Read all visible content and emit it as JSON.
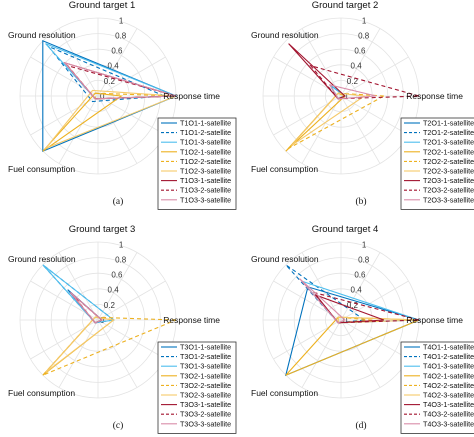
{
  "chart_data": [
    {
      "type": "radar",
      "panel": "(a)",
      "title": "Ground target 1",
      "axes": [
        "Response time",
        "Ground resolution",
        "Fuel consumption"
      ],
      "rticks": [
        "0",
        "0.2",
        "0.4",
        "0.6",
        "0.8",
        "1"
      ],
      "rlim": [
        0,
        1
      ],
      "legend_location": "bottom-right",
      "series": [
        {
          "name": "T1O1-1-satellite",
          "color": "#0072BD",
          "dash": "solid",
          "values": [
            1.0,
            1.0,
            1.0
          ]
        },
        {
          "name": "T1O1-2-satellite",
          "color": "#0072BD",
          "dash": "dashed",
          "values": [
            0.85,
            0.9,
            0.1
          ]
        },
        {
          "name": "T1O1-3-satellite",
          "color": "#4DBEEE",
          "dash": "solid",
          "values": [
            1.0,
            0.95,
            0.05
          ]
        },
        {
          "name": "T1O2-1-satellite",
          "color": "#EDB120",
          "dash": "solid",
          "values": [
            0.3,
            0.05,
            1.0
          ]
        },
        {
          "name": "T1O2-2-satellite",
          "color": "#EDB120",
          "dash": "dashed",
          "values": [
            1.0,
            0.05,
            0.05
          ]
        },
        {
          "name": "T1O2-3-satellite",
          "color": "#F5C96A",
          "dash": "solid",
          "values": [
            1.0,
            0.1,
            0.95
          ]
        },
        {
          "name": "T1O3-1-satellite",
          "color": "#A2142F",
          "dash": "solid",
          "values": [
            1.0,
            0.6,
            0.05
          ]
        },
        {
          "name": "T1O3-2-satellite",
          "color": "#A2142F",
          "dash": "dashed",
          "values": [
            1.0,
            0.55,
            0.05
          ]
        },
        {
          "name": "T1O3-3-satellite",
          "color": "#D98CA8",
          "dash": "solid",
          "values": [
            1.0,
            0.6,
            0.05
          ]
        }
      ]
    },
    {
      "type": "radar",
      "panel": "(b)",
      "title": "Ground target 2",
      "axes": [
        "Response time",
        "Ground resolution",
        "Fuel consumption"
      ],
      "rticks": [
        "0",
        "0.2",
        "0.4",
        "0.6",
        "0.8",
        "1"
      ],
      "rlim": [
        0,
        1
      ],
      "legend_location": "bottom-right",
      "series": [
        {
          "name": "T2O1-1-satellite",
          "color": "#0072BD",
          "dash": "solid",
          "values": [
            0.05,
            0.2,
            0.05
          ]
        },
        {
          "name": "T2O1-2-satellite",
          "color": "#0072BD",
          "dash": "dashed",
          "values": [
            0.05,
            0.2,
            0.05
          ]
        },
        {
          "name": "T2O1-3-satellite",
          "color": "#4DBEEE",
          "dash": "solid",
          "values": [
            0.05,
            0.2,
            0.05
          ]
        },
        {
          "name": "T2O2-1-satellite",
          "color": "#EDB120",
          "dash": "solid",
          "values": [
            0.05,
            0.05,
            1.0
          ]
        },
        {
          "name": "T2O2-2-satellite",
          "color": "#EDB120",
          "dash": "dashed",
          "values": [
            0.55,
            0.05,
            0.95
          ]
        },
        {
          "name": "T2O2-3-satellite",
          "color": "#F5C96A",
          "dash": "solid",
          "values": [
            0.3,
            0.05,
            0.9
          ]
        },
        {
          "name": "T2O3-1-satellite",
          "color": "#A2142F",
          "dash": "solid",
          "values": [
            0.05,
            0.95,
            0.05
          ]
        },
        {
          "name": "T2O3-2-satellite",
          "color": "#A2142F",
          "dash": "dashed",
          "values": [
            1.0,
            0.55,
            0.05
          ]
        },
        {
          "name": "T2O3-3-satellite",
          "color": "#D98CA8",
          "dash": "solid",
          "values": [
            0.45,
            0.2,
            0.05
          ]
        }
      ]
    },
    {
      "type": "radar",
      "panel": "(c)",
      "title": "Ground target 3",
      "axes": [
        "Response time",
        "Ground resolution",
        "Fuel consumption"
      ],
      "rticks": [
        "0",
        "0.2",
        "0.4",
        "0.6",
        "0.8",
        "1"
      ],
      "rlim": [
        0,
        1
      ],
      "legend_location": "bottom-right",
      "series": [
        {
          "name": "T3O1-1-satellite",
          "color": "#0072BD",
          "dash": "solid",
          "values": [
            0.05,
            0.55,
            0.05
          ]
        },
        {
          "name": "T3O1-2-satellite",
          "color": "#0072BD",
          "dash": "dashed",
          "values": [
            0.2,
            1.0,
            0.05
          ]
        },
        {
          "name": "T3O1-3-satellite",
          "color": "#4DBEEE",
          "dash": "solid",
          "values": [
            0.2,
            1.0,
            0.05
          ]
        },
        {
          "name": "T3O2-1-satellite",
          "color": "#EDB120",
          "dash": "solid",
          "values": [
            0.2,
            0.05,
            1.0
          ]
        },
        {
          "name": "T3O2-2-satellite",
          "color": "#EDB120",
          "dash": "dashed",
          "values": [
            1.0,
            0.05,
            1.0
          ]
        },
        {
          "name": "T3O2-3-satellite",
          "color": "#F5C96A",
          "dash": "solid",
          "values": [
            0.2,
            0.05,
            0.95
          ]
        },
        {
          "name": "T3O3-1-satellite",
          "color": "#A2142F",
          "dash": "solid",
          "values": [
            0.05,
            0.5,
            0.05
          ]
        },
        {
          "name": "T3O3-2-satellite",
          "color": "#A2142F",
          "dash": "dashed",
          "values": [
            0.05,
            0.45,
            0.05
          ]
        },
        {
          "name": "T3O3-3-satellite",
          "color": "#D98CA8",
          "dash": "solid",
          "values": [
            0.05,
            0.5,
            0.05
          ]
        }
      ]
    },
    {
      "type": "radar",
      "panel": "(d)",
      "title": "Ground target 4",
      "axes": [
        "Response time",
        "Ground resolution",
        "Fuel consumption"
      ],
      "rticks": [
        "0",
        "0.2",
        "0.4",
        "0.6",
        "0.8",
        "1"
      ],
      "rlim": [
        0,
        1
      ],
      "legend_location": "bottom-right",
      "series": [
        {
          "name": "T4O1-1-satellite",
          "color": "#0072BD",
          "dash": "solid",
          "values": [
            1.0,
            0.6,
            1.0
          ]
        },
        {
          "name": "T4O1-2-satellite",
          "color": "#0072BD",
          "dash": "dashed",
          "values": [
            0.3,
            1.0,
            0.05
          ]
        },
        {
          "name": "T4O1-3-satellite",
          "color": "#4DBEEE",
          "dash": "solid",
          "values": [
            1.0,
            0.7,
            0.05
          ]
        },
        {
          "name": "T4O2-1-satellite",
          "color": "#EDB120",
          "dash": "solid",
          "values": [
            1.0,
            0.05,
            1.0
          ]
        },
        {
          "name": "T4O2-2-satellite",
          "color": "#EDB120",
          "dash": "dashed",
          "values": [
            0.4,
            0.05,
            0.05
          ]
        },
        {
          "name": "T4O2-3-satellite",
          "color": "#F5C96A",
          "dash": "solid",
          "values": [
            1.0,
            0.05,
            0.05
          ]
        },
        {
          "name": "T4O3-1-satellite",
          "color": "#A2142F",
          "dash": "solid",
          "values": [
            0.55,
            0.45,
            0.05
          ]
        },
        {
          "name": "T4O3-2-satellite",
          "color": "#A2142F",
          "dash": "dashed",
          "values": [
            1.0,
            0.5,
            0.05
          ]
        },
        {
          "name": "T4O3-3-satellite",
          "color": "#D98CA8",
          "dash": "solid",
          "values": [
            0.05,
            0.75,
            0.05
          ]
        }
      ]
    }
  ]
}
